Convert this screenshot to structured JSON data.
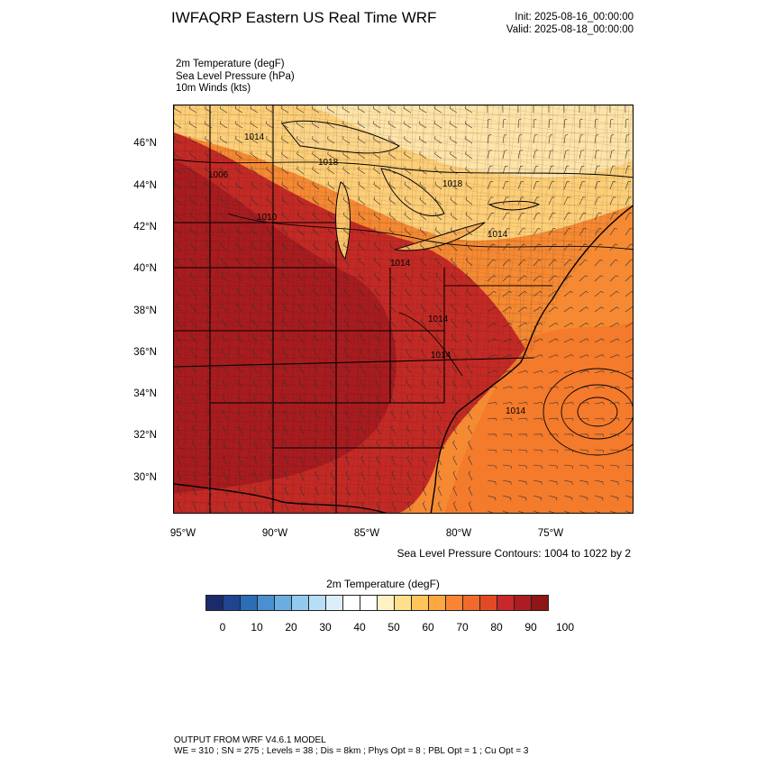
{
  "header": {
    "title": "IWFAQRP Eastern US Real Time WRF",
    "init": "Init: 2025-08-16_00:00:00",
    "valid": "Valid: 2025-08-18_00:00:00"
  },
  "fields": [
    "2m Temperature   (degF)",
    "Sea Level Pressure   (hPa)",
    "10m Winds   (kts)"
  ],
  "axes": {
    "lat_labels": [
      "46°N",
      "44°N",
      "42°N",
      "40°N",
      "38°N",
      "36°N",
      "34°N",
      "32°N",
      "30°N"
    ],
    "lon_labels": [
      "95°W",
      "90°W",
      "85°W",
      "80°W",
      "75°W"
    ],
    "lat_values": [
      46,
      44,
      42,
      40,
      38,
      36,
      34,
      32,
      30
    ],
    "lon_values": [
      -95,
      -90,
      -85,
      -80,
      -75
    ]
  },
  "contours": {
    "note": "Sea Level Pressure Contours: 1004 to 1022 by 2",
    "labels": [
      "1014",
      "1018",
      "1006",
      "1010",
      "1018",
      "1014",
      "1014",
      "1014",
      "1014",
      "1014"
    ]
  },
  "colorbar": {
    "title": "2m Temperature  (degF)",
    "colors": [
      "#1a2a6c",
      "#1f4591",
      "#2d6db5",
      "#4a8fd0",
      "#6aaee0",
      "#92c9ee",
      "#b8def5",
      "#dceefa",
      "#ffffff",
      "#ffffff",
      "#fff1c4",
      "#ffe08a",
      "#fec55a",
      "#fca73f",
      "#f98532",
      "#f26a2b",
      "#e24a26",
      "#c8282a",
      "#ac1c22",
      "#8e1616"
    ],
    "tick_labels": [
      "0",
      "10",
      "20",
      "30",
      "40",
      "50",
      "60",
      "70",
      "80",
      "90",
      "100"
    ]
  },
  "footer": {
    "line1": "OUTPUT FROM WRF V4.6.1 MODEL",
    "line2": "WE = 310 ; SN = 275 ; Levels = 38 ; Dis = 8km ; Phys Opt = 8 ; PBL Opt = 1 ; Cu Opt = 3"
  }
}
